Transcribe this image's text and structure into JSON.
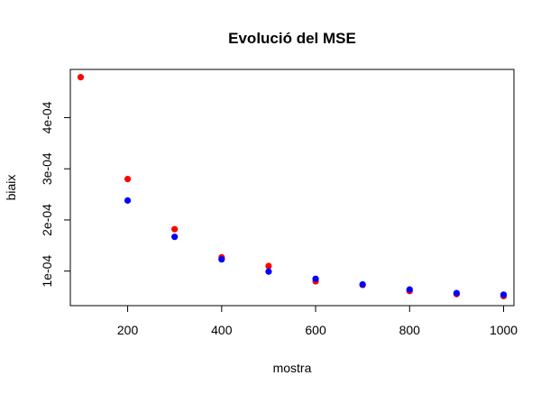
{
  "chart_data": {
    "type": "scatter",
    "title": "Evolució del MSE",
    "xlabel": "mostra",
    "ylabel": "biaix",
    "xlim": [
      78,
      1022
    ],
    "ylim": [
      3.25e-05,
      0.0004942
    ],
    "x_ticks": [
      200,
      400,
      600,
      800,
      1000
    ],
    "y_ticks": [
      0.0001,
      0.0002,
      0.0003,
      0.0004
    ],
    "x_tick_labels": [
      "200",
      "400",
      "600",
      "800",
      "1000"
    ],
    "y_tick_labels": [
      "1e-04",
      "2e-04",
      "3e-04",
      "4e-04"
    ],
    "grid": false,
    "legend": "none",
    "series": [
      {
        "color": "#ff0000",
        "points": [
          {
            "x": 100,
            "y": 0.000479
          },
          {
            "x": 200,
            "y": 0.00028
          },
          {
            "x": 300,
            "y": 0.000182
          },
          {
            "x": 400,
            "y": 0.000127
          },
          {
            "x": 500,
            "y": 0.00011
          },
          {
            "x": 600,
            "y": 8e-05
          },
          {
            "x": 700,
            "y": 7.3e-05
          },
          {
            "x": 800,
            "y": 6.1e-05
          },
          {
            "x": 900,
            "y": 5.5e-05
          },
          {
            "x": 1000,
            "y": 5.1e-05
          }
        ]
      },
      {
        "color": "#0000ff",
        "points": [
          {
            "x": 200,
            "y": 0.000238
          },
          {
            "x": 300,
            "y": 0.000167
          },
          {
            "x": 400,
            "y": 0.000123
          },
          {
            "x": 500,
            "y": 9.9e-05
          },
          {
            "x": 600,
            "y": 8.5e-05
          },
          {
            "x": 700,
            "y": 7.4e-05
          },
          {
            "x": 800,
            "y": 6.4e-05
          },
          {
            "x": 900,
            "y": 5.7e-05
          },
          {
            "x": 1000,
            "y": 5.4e-05
          }
        ]
      }
    ]
  }
}
